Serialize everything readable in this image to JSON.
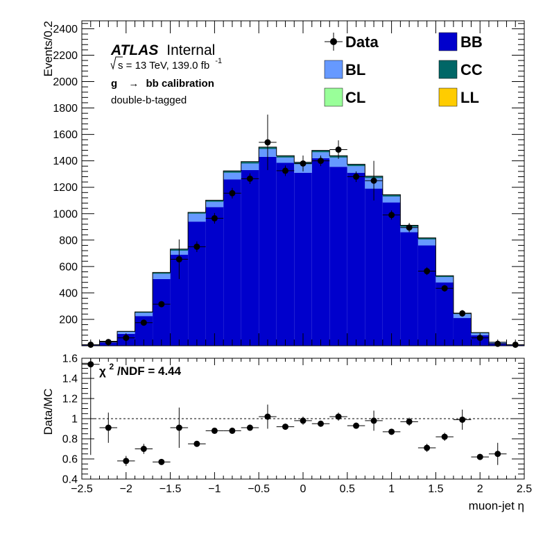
{
  "chart_data": [
    {
      "type": "bar",
      "stacked": true,
      "ylabel": "Events/0.2",
      "xlim": [
        -2.5,
        2.5
      ],
      "ylim": [
        0,
        2460
      ],
      "y_ticks": [
        200,
        400,
        600,
        800,
        1000,
        1200,
        1400,
        1600,
        1800,
        2000,
        2200,
        2400
      ],
      "bin_edges": [
        -2.5,
        -2.3,
        -2.1,
        -1.9,
        -1.7,
        -1.5,
        -1.3,
        -1.1,
        -0.9,
        -0.7,
        -0.5,
        -0.3,
        -0.1,
        0.1,
        0.3,
        0.5,
        0.7,
        0.9,
        1.1,
        1.3,
        1.5,
        1.7,
        1.9,
        2.1,
        2.3,
        2.5
      ],
      "series": [
        {
          "name": "BB",
          "color": "#0000cc",
          "values": [
            5,
            25,
            90,
            225,
            505,
            690,
            940,
            1050,
            1260,
            1330,
            1430,
            1385,
            1310,
            1420,
            1355,
            1310,
            1190,
            1085,
            860,
            760,
            480,
            210,
            80,
            20,
            5
          ]
        },
        {
          "name": "BL",
          "color": "#6699ff",
          "values": [
            2,
            7,
            15,
            25,
            40,
            30,
            60,
            40,
            50,
            50,
            60,
            40,
            65,
            45,
            70,
            50,
            80,
            45,
            40,
            45,
            40,
            30,
            15,
            5,
            2
          ]
        },
        {
          "name": "CC",
          "color": "#006666",
          "values": [
            0,
            2,
            3,
            5,
            8,
            10,
            8,
            10,
            12,
            12,
            12,
            12,
            12,
            12,
            12,
            12,
            12,
            12,
            10,
            10,
            8,
            6,
            4,
            2,
            0
          ]
        },
        {
          "name": "CL",
          "color": "#99ff99",
          "values": [
            0,
            0,
            1,
            1,
            2,
            2,
            2,
            2,
            2,
            2,
            2,
            2,
            2,
            2,
            2,
            2,
            2,
            2,
            2,
            2,
            2,
            1,
            1,
            0,
            0
          ]
        },
        {
          "name": "LL",
          "color": "#ffcc00",
          "values": [
            0,
            0,
            0,
            0,
            0,
            0,
            0,
            0,
            0,
            0,
            0,
            0,
            0,
            0,
            0,
            0,
            0,
            0,
            0,
            0,
            0,
            0,
            0,
            0,
            0
          ]
        }
      ],
      "data_points": {
        "name": "Data",
        "x": [
          -2.4,
          -2.2,
          -2.0,
          -1.8,
          -1.6,
          -1.4,
          -1.2,
          -1.0,
          -0.8,
          -0.6,
          -0.4,
          -0.2,
          0.0,
          0.2,
          0.4,
          0.6,
          0.8,
          1.0,
          1.2,
          1.4,
          1.6,
          1.8,
          2.0,
          2.2,
          2.4
        ],
        "y": [
          8,
          28,
          60,
          175,
          315,
          655,
          750,
          965,
          1155,
          1265,
          1540,
          1325,
          1380,
          1400,
          1485,
          1280,
          1250,
          990,
          895,
          565,
          435,
          245,
          60,
          15,
          8
        ],
        "err_low": [
          8,
          10,
          15,
          20,
          20,
          150,
          40,
          40,
          40,
          40,
          210,
          40,
          60,
          40,
          70,
          40,
          150,
          35,
          35,
          30,
          25,
          25,
          10,
          8,
          5
        ],
        "err_high": [
          8,
          10,
          15,
          20,
          20,
          150,
          40,
          40,
          40,
          40,
          210,
          40,
          60,
          40,
          70,
          40,
          150,
          35,
          35,
          30,
          25,
          25,
          10,
          8,
          5
        ]
      },
      "legend": [
        {
          "label": "Data",
          "style": "marker"
        },
        {
          "label": "BB",
          "style": "box",
          "color": "#0000cc"
        },
        {
          "label": "BL",
          "style": "box",
          "color": "#6699ff"
        },
        {
          "label": "CC",
          "style": "box",
          "color": "#006666"
        },
        {
          "label": "CL",
          "style": "box",
          "color": "#99ff99"
        },
        {
          "label": "LL",
          "style": "box",
          "color": "#ffcc00"
        }
      ],
      "legend_position": "top-right",
      "annotations": {
        "atlas": "ATLAS",
        "internal": "Internal",
        "sqrt_s": "s = 13 TeV, 139.0 fb",
        "lumi_exp": "-1",
        "process_g": "g",
        "process_arrow": "→",
        "process_rest": "bb calibration",
        "selection": "double-b-tagged"
      }
    },
    {
      "type": "scatter",
      "xlabel": "muon-jet η",
      "ylabel": "Data/MC",
      "xlim": [
        -2.5,
        2.5
      ],
      "ylim": [
        0.4,
        1.6
      ],
      "x_ticks": [
        -2.5,
        -2,
        -1.5,
        -1,
        -0.5,
        0,
        0.5,
        1,
        1.5,
        2,
        2.5
      ],
      "x_tick_labels": [
        "−2.5",
        "−2",
        "−1.5",
        "−1",
        "−0.5",
        "0",
        "0.5",
        "1",
        "1.5",
        "2",
        "2.5"
      ],
      "y_ticks": [
        0.4,
        0.6,
        0.8,
        1.0,
        1.2,
        1.4,
        1.6
      ],
      "y_tick_labels": [
        "0.4",
        "0.6",
        "0.8",
        "1",
        "1.2",
        "1.4",
        "1.6"
      ],
      "reference_line": 1.0,
      "chi2_label": "χ",
      "chi2_sup": "2",
      "chi2_rest": "/NDF = 4.44",
      "x": [
        -2.4,
        -2.2,
        -2.0,
        -1.8,
        -1.6,
        -1.4,
        -1.2,
        -1.0,
        -0.8,
        -0.6,
        -0.4,
        -0.2,
        0.0,
        0.2,
        0.4,
        0.6,
        0.8,
        1.0,
        1.2,
        1.4,
        1.6,
        1.8,
        2.0,
        2.2
      ],
      "y": [
        1.54,
        0.91,
        0.58,
        0.7,
        0.57,
        0.91,
        0.75,
        0.88,
        0.88,
        0.91,
        1.02,
        0.92,
        0.98,
        0.95,
        1.02,
        0.93,
        0.98,
        0.87,
        0.97,
        0.71,
        0.82,
        0.99,
        0.62,
        0.65
      ],
      "err": [
        0.9,
        0.15,
        0.05,
        0.05,
        0.02,
        0.2,
        0.02,
        0.03,
        0.03,
        0.03,
        0.12,
        0.03,
        0.04,
        0.03,
        0.04,
        0.03,
        0.1,
        0.03,
        0.04,
        0.04,
        0.04,
        0.1,
        0.03,
        0.11
      ]
    }
  ]
}
